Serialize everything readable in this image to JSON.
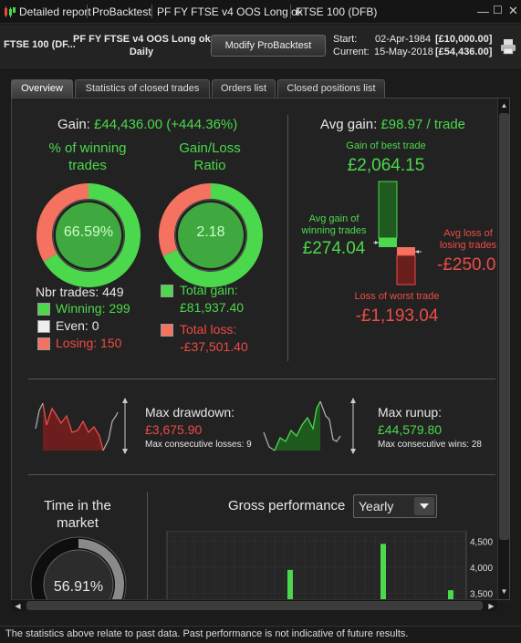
{
  "window": {
    "title_segments": [
      "Detailed report",
      "ProBacktest",
      "PF FY FTSE v4 OOS Long ok",
      "FTSE 100 (DFB)"
    ],
    "icons": [
      "candlestick-icon",
      "minimize-icon",
      "maximize-icon",
      "close-icon"
    ]
  },
  "header": {
    "instrument": "FTSE 100 (DF...",
    "system_name": "PF FY FTSE v4 OOS Long ok",
    "timeframe": "Daily",
    "modify_label": "Modify ProBacktest",
    "start_label": "Start:",
    "start_date": "02-Apr-1984",
    "start_value": "[£10,000.00]",
    "current_label": "Current:",
    "current_date": "15-May-2018",
    "current_value": "[£54,436.00]"
  },
  "tabs": [
    {
      "label": "Overview",
      "active": true
    },
    {
      "label": "Statistics of closed trades",
      "active": false
    },
    {
      "label": "Orders list",
      "active": false
    },
    {
      "label": "Closed positions list",
      "active": false
    }
  ],
  "overview": {
    "gain_label": "Gain:",
    "gain_value": "£44,436.00 (+444.36%)",
    "winning_title_1": "% of winning",
    "winning_title_2": "trades",
    "winning_pct_text": "66.59%",
    "winning_fraction": 0.6659,
    "ratio_title_1": "Gain/Loss",
    "ratio_title_2": "Ratio",
    "ratio_text": "2.18",
    "ratio_fraction": 0.6855,
    "nbr_trades": "Nbr trades: 449",
    "winning": "Winning: 299",
    "even": "Even: 0",
    "losing": "Losing: 150",
    "total_gain_label": "Total gain:",
    "total_gain_value": "£81,937.40",
    "total_loss_label": "Total loss:",
    "total_loss_value": "-£37,501.40",
    "avg_gain_label": "Avg gain:",
    "avg_gain_value": "£98.97 / trade",
    "best_trade_label": "Gain of best trade",
    "best_trade_value": "£2,064.15",
    "avg_win_label_1": "Avg gain of",
    "avg_win_label_2": "winning trades",
    "avg_win_value": "£274.04",
    "avg_loss_label_1": "Avg loss of",
    "avg_loss_label_2": "losing trades",
    "avg_loss_value": "-£250.0",
    "worst_trade_label": "Loss of worst trade",
    "worst_trade_value": "-£1,193.04",
    "max_drawdown_label": "Max drawdown:",
    "max_drawdown_value": "£3,675.90",
    "max_consec_losses": "Max consecutive losses: 9",
    "max_runup_label": "Max runup:",
    "max_runup_value": "£44,579.80",
    "max_consec_wins": "Max consecutive wins: 28",
    "time_market_1": "Time in the",
    "time_market_2": "market",
    "time_market_pct": "56.91%",
    "time_market_fraction": 0.5691,
    "gross_perf_label": "Gross performance",
    "gross_perf_period": "Yearly"
  },
  "chart_data": {
    "type": "bar",
    "title": "Gross performance",
    "y_ticks": [
      "4,500",
      "4,000",
      "3,500"
    ],
    "ylim": [
      3300,
      4700
    ],
    "values": [
      3950,
      4450,
      3560
    ],
    "grid": true
  },
  "footer": {
    "disclaimer": "The statistics above relate to past data. Past performance is not indicative of future results."
  },
  "colors": {
    "green": "#4cd84c",
    "red": "#ef4b44",
    "salmon": "#f4725f"
  }
}
